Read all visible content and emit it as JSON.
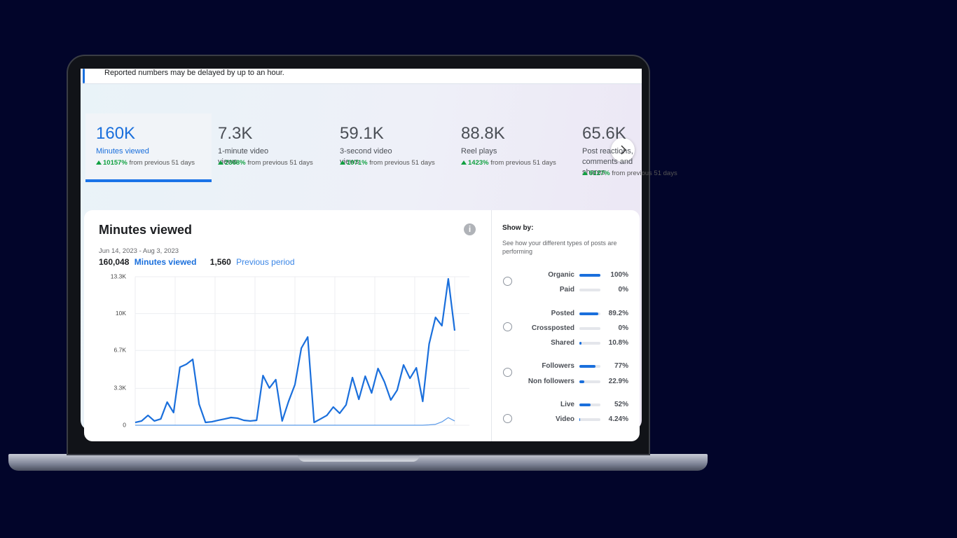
{
  "banner": {
    "text": "Reported numbers may be delayed by up to an hour."
  },
  "metrics": [
    {
      "value": "160K",
      "label": "Minutes viewed",
      "change": "10157%",
      "period": "from previous 51 days"
    },
    {
      "value": "7.3K",
      "label": "1-minute video views",
      "change": "2368%",
      "period": "from previous 51 days"
    },
    {
      "value": "59.1K",
      "label": "3-second video views",
      "change": "1971%",
      "period": "from previous 51 days"
    },
    {
      "value": "88.8K",
      "label": "Reel plays",
      "change": "1423%",
      "period": "from previous 51 days"
    },
    {
      "value": "65.6K",
      "label": "Post reactions, comments and shares",
      "change": "9127%",
      "period": "from previous 51 days"
    }
  ],
  "panel": {
    "title": "Minutes viewed",
    "date_range": "Jun 14, 2023 - Aug 3, 2023",
    "legend": [
      {
        "total": "160,048",
        "name": "Minutes viewed"
      },
      {
        "total": "1,560",
        "name": "Previous period"
      }
    ]
  },
  "chart_data": {
    "type": "line",
    "series": [
      {
        "name": "Minutes viewed",
        "color": "#1a6fdc",
        "values": [
          250,
          380,
          880,
          380,
          560,
          2070,
          1130,
          5200,
          5460,
          5900,
          1880,
          250,
          310,
          440,
          560,
          690,
          630,
          440,
          380,
          440,
          4450,
          3330,
          4080,
          380,
          2130,
          3640,
          6900,
          7900,
          250,
          560,
          880,
          1630,
          1070,
          1820,
          4270,
          2320,
          4390,
          2890,
          5080,
          3890,
          2260,
          3140,
          5400,
          4200,
          5140,
          2130,
          7280,
          9660,
          8910,
          13110,
          8470
        ]
      },
      {
        "name": "Previous period",
        "color": "#5b9ae8",
        "values": [
          0,
          0,
          0,
          0,
          0,
          0,
          0,
          0,
          0,
          0,
          0,
          0,
          0,
          0,
          0,
          0,
          0,
          0,
          0,
          0,
          0,
          0,
          0,
          0,
          0,
          0,
          0,
          0,
          0,
          0,
          0,
          0,
          0,
          0,
          0,
          0,
          0,
          0,
          0,
          0,
          0,
          0,
          0,
          0,
          0,
          0,
          30,
          80,
          300,
          680,
          380
        ]
      }
    ],
    "ylim": [
      0,
      13300
    ],
    "yticks": [
      0,
      {
        "value": 3300,
        "label": "3.3K"
      },
      {
        "value": 6700,
        "label": "6.7K"
      },
      {
        "value": 10000,
        "label": "10K"
      },
      {
        "value": 13300,
        "label": "13.3K"
      }
    ],
    "grid": true
  },
  "show_by": {
    "title": "Show by:",
    "description": "See how your different types of posts are performing",
    "groups": [
      {
        "items": [
          {
            "label": "Organic",
            "value": 100,
            "value_label": "100%"
          },
          {
            "label": "Paid",
            "value": 0,
            "value_label": "0%"
          }
        ]
      },
      {
        "items": [
          {
            "label": "Posted",
            "value": 89.2,
            "value_label": "89.2%"
          },
          {
            "label": "Crossposted",
            "value": 0,
            "value_label": "0%"
          },
          {
            "label": "Shared",
            "value": 10.8,
            "value_label": "10.8%"
          }
        ]
      },
      {
        "items": [
          {
            "label": "Followers",
            "value": 77,
            "value_label": "77%"
          },
          {
            "label": "Non followers",
            "value": 22.9,
            "value_label": "22.9%"
          }
        ]
      },
      {
        "items": [
          {
            "label": "Live",
            "value": 52,
            "value_label": "52%"
          },
          {
            "label": "Video",
            "value": 4.24,
            "value_label": "4.24%"
          }
        ]
      }
    ]
  }
}
